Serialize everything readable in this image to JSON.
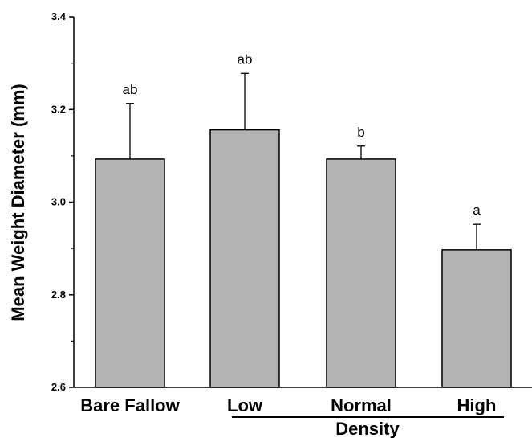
{
  "chart_data": {
    "type": "bar",
    "categories": [
      "Bare Fallow",
      "Low",
      "Normal",
      "High"
    ],
    "values": [
      3.093,
      3.156,
      3.093,
      2.897
    ],
    "errors": [
      0.12,
      0.122,
      0.028,
      0.055
    ],
    "significance_labels": [
      "ab",
      "ab",
      "b",
      "a"
    ],
    "title": "",
    "ylabel": "Mean Weight Diameter (mm)",
    "xgroup_label": "Density",
    "xgroup_categories": [
      "Low",
      "Normal",
      "High"
    ],
    "ylim": [
      2.6,
      3.4
    ],
    "yticks": [
      "2.6",
      "2.8",
      "3.0",
      "3.2",
      "3.4"
    ],
    "ytick_values": [
      2.6,
      2.8,
      3.0,
      3.2,
      3.4
    ],
    "grid": false,
    "bar_color": "#b3b3b3",
    "edge_color": "#000000"
  }
}
